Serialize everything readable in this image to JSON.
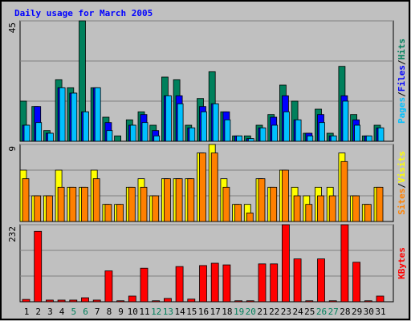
{
  "chart_data": [
    {
      "type": "bar",
      "title": "Daily usage for March 2005",
      "categories": [
        "1",
        "2",
        "3",
        "4",
        "5",
        "6",
        "7",
        "8",
        "9",
        "10",
        "11",
        "12",
        "13",
        "14",
        "15",
        "16",
        "17",
        "18",
        "19",
        "20",
        "21",
        "22",
        "23",
        "24",
        "25",
        "26",
        "27",
        "28",
        "29",
        "30",
        "31"
      ],
      "category_colors": [
        "#000000",
        "#000000",
        "#000000",
        "#000000",
        "#00805c",
        "#00805c",
        "#000000",
        "#000000",
        "#000000",
        "#000000",
        "#000000",
        "#00805c",
        "#00805c",
        "#000000",
        "#000000",
        "#000000",
        "#000000",
        "#000000",
        "#00805c",
        "#00805c",
        "#000000",
        "#000000",
        "#000000",
        "#000000",
        "#000000",
        "#00805c",
        "#00805c",
        "#000000",
        "#000000",
        "#000000",
        "#000000"
      ],
      "series": [
        {
          "name": "Hits",
          "color": "#00805c",
          "values": [
            15,
            13,
            4,
            23,
            20,
            45,
            20,
            9,
            2,
            8,
            11,
            6,
            24,
            23,
            6,
            16,
            26,
            11,
            2,
            2,
            6,
            10,
            21,
            15,
            3,
            12,
            3,
            28,
            10,
            2,
            6
          ]
        },
        {
          "name": "Files",
          "color": "#0000ff",
          "values": [
            6,
            13,
            3,
            20,
            18,
            11,
            20,
            7,
            0,
            6,
            10,
            4,
            17,
            17,
            5,
            13,
            14,
            11,
            2,
            1,
            5,
            9,
            17,
            8,
            3,
            10,
            2,
            17,
            8,
            2,
            5
          ]
        },
        {
          "name": "Pages",
          "color": "#00c0ff",
          "values": [
            6,
            7,
            3,
            20,
            18,
            11,
            20,
            4,
            0,
            6,
            7,
            2,
            17,
            14,
            5,
            11,
            14,
            8,
            2,
            1,
            5,
            6,
            11,
            8,
            2,
            7,
            2,
            15,
            6,
            2,
            5
          ]
        }
      ],
      "ylim": [
        0,
        45
      ],
      "yticks": [
        45
      ]
    },
    {
      "type": "bar",
      "series": [
        {
          "name": "Visits",
          "color": "#ffff00",
          "values": [
            6,
            3,
            3,
            6,
            4,
            4,
            6,
            2,
            2,
            4,
            5,
            3,
            5,
            5,
            5,
            8,
            9,
            5,
            2,
            2,
            5,
            4,
            6,
            4,
            3,
            4,
            4,
            8,
            3,
            2,
            4
          ]
        },
        {
          "name": "Sites",
          "color": "#ff8000",
          "values": [
            5,
            3,
            3,
            4,
            4,
            4,
            5,
            2,
            2,
            4,
            4,
            3,
            5,
            5,
            5,
            8,
            8,
            4,
            2,
            1,
            5,
            4,
            6,
            3,
            2,
            3,
            3,
            7,
            3,
            2,
            4
          ]
        }
      ],
      "ylim": [
        0,
        9
      ],
      "yticks": [
        9
      ]
    },
    {
      "type": "bar",
      "series": [
        {
          "name": "KBytes",
          "color": "#ff0000",
          "values": [
            7,
            212,
            5,
            5,
            5,
            12,
            5,
            93,
            3,
            17,
            101,
            3,
            10,
            106,
            8,
            109,
            116,
            111,
            3,
            3,
            114,
            114,
            232,
            129,
            3,
            129,
            3,
            232,
            119,
            3,
            17
          ]
        }
      ],
      "ylim": [
        0,
        232
      ],
      "yticks": [
        232
      ]
    }
  ]
}
